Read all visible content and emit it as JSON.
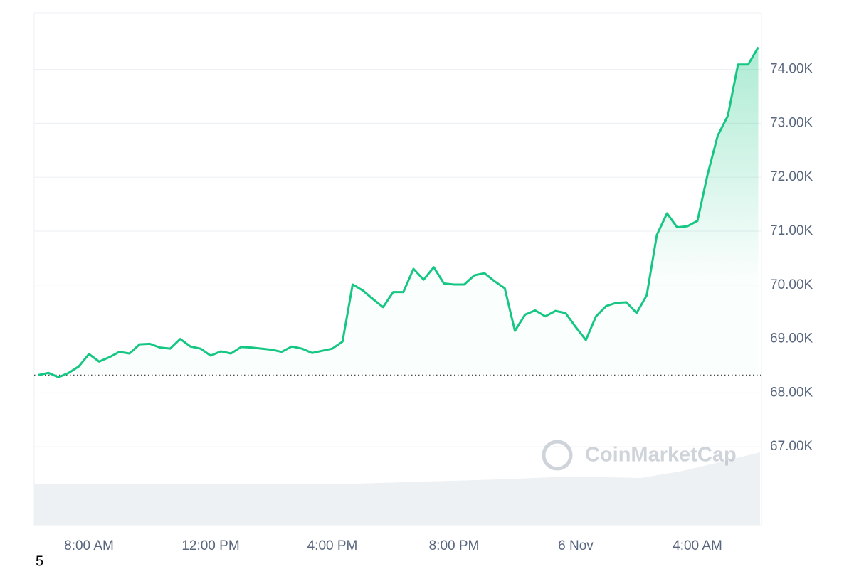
{
  "chart_data": {
    "type": "line",
    "color": "#16c784",
    "grid": true,
    "baseline": 68330,
    "watermark": "CoinMarketCap",
    "corner_label": "5",
    "categories": [
      null,
      null,
      null,
      null,
      null,
      "8:00 AM",
      null,
      null,
      null,
      null,
      null,
      null,
      null,
      null,
      null,
      null,
      null,
      "12:00 PM",
      null,
      null,
      null,
      null,
      null,
      null,
      null,
      null,
      null,
      null,
      null,
      "4:00 PM",
      null,
      null,
      null,
      null,
      null,
      null,
      null,
      null,
      null,
      null,
      null,
      "8:00 PM",
      null,
      null,
      null,
      null,
      null,
      null,
      null,
      null,
      null,
      null,
      null,
      "6 Nov",
      null,
      null,
      null,
      null,
      null,
      null,
      null,
      null,
      null,
      null,
      null,
      "4:00 AM",
      null,
      null,
      null,
      null,
      null,
      null
    ],
    "values": [
      68330,
      68370,
      68290,
      68370,
      68490,
      68720,
      68580,
      68660,
      68760,
      68730,
      68900,
      68910,
      68840,
      68820,
      69000,
      68860,
      68820,
      68690,
      68770,
      68730,
      68850,
      68840,
      68820,
      68800,
      68760,
      68860,
      68820,
      68740,
      68780,
      68820,
      68950,
      70010,
      69900,
      69740,
      69590,
      69870,
      69870,
      70300,
      70100,
      70330,
      70030,
      70010,
      70010,
      70180,
      70220,
      70070,
      69940,
      69150,
      69450,
      69530,
      69420,
      69520,
      69480,
      69220,
      68980,
      69420,
      69610,
      69670,
      69680,
      69480,
      69810,
      70930,
      71330,
      71070,
      71090,
      71190,
      72050,
      72770,
      73140,
      74090,
      74090,
      74410
    ],
    "ylim": [
      65550,
      75050
    ],
    "yticks": [
      {
        "value": 67000,
        "label": "67.00K"
      },
      {
        "value": 68000,
        "label": "68.00K"
      },
      {
        "value": 69000,
        "label": "69.00K"
      },
      {
        "value": 70000,
        "label": "70.00K"
      },
      {
        "value": 71000,
        "label": "71.00K"
      },
      {
        "value": 72000,
        "label": "72.00K"
      },
      {
        "value": 73000,
        "label": "73.00K"
      },
      {
        "value": 74000,
        "label": "74.00K"
      }
    ]
  }
}
